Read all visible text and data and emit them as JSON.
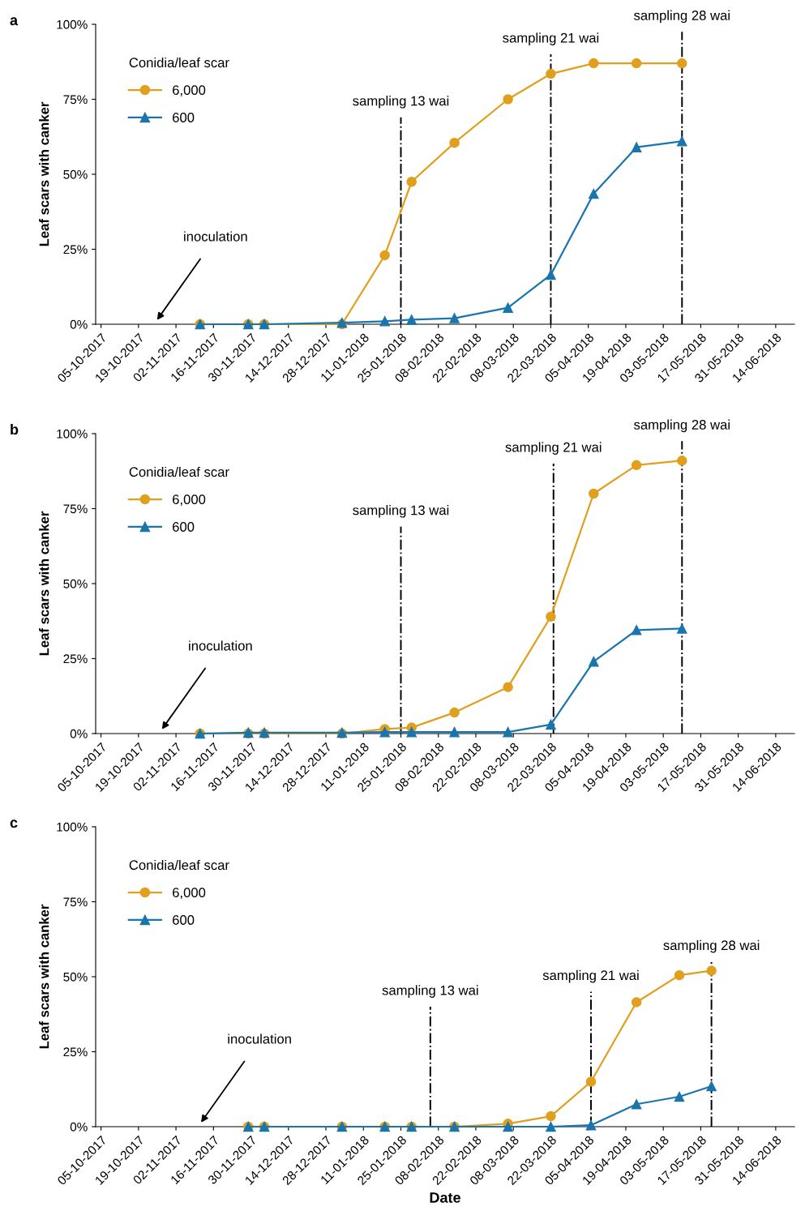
{
  "chart_data": [
    {
      "type": "line",
      "annotations": [
        "a",
        "inoculation"
      ],
      "ylabel": "Leaf scars with canker",
      "legend_title": "Conidia/leaf scar",
      "legend": "top left",
      "line_style": "solid",
      "x": [
        "2017-11-11",
        "2017-11-29",
        "2017-12-05",
        "2018-01-03",
        "2018-01-19",
        "2018-01-29",
        "2018-02-14",
        "2018-03-06",
        "2018-03-22",
        "2018-04-07",
        "2018-04-23",
        "2018-05-10"
      ],
      "series": [
        {
          "name": "6,000",
          "color": "#e0a01e",
          "marker": "circle",
          "values": [
            0,
            0,
            0,
            0,
            23,
            47.5,
            60.5,
            75,
            83.5,
            87,
            87,
            87
          ]
        },
        {
          "name": "600",
          "color": "#1b75ad",
          "marker": "triangle",
          "values": [
            0,
            0,
            0,
            0.5,
            1,
            1.5,
            2,
            5.5,
            16.5,
            43.5,
            59,
            61
          ]
        }
      ],
      "ref_lines": [
        {
          "axis": "x",
          "value": "2018-01-25",
          "label": "sampling 13 wai",
          "line_style": "dashdot"
        },
        {
          "axis": "x",
          "value": "2018-03-22",
          "label": "sampling 21 wai",
          "line_style": "dashdot"
        },
        {
          "axis": "x",
          "value": "2018-05-10",
          "label": "sampling 28 wai",
          "line_style": "dashdot"
        }
      ],
      "xlim": [
        "2017-10-03",
        "2018-06-21"
      ],
      "ylim": [
        0,
        100
      ],
      "xticks": [
        {
          "value": "2017-10-05",
          "label": "05-10-2017"
        },
        {
          "value": "2017-10-19",
          "label": "19-10-2017"
        },
        {
          "value": "2017-11-02",
          "label": "02-11-2017"
        },
        {
          "value": "2017-11-16",
          "label": "16-11-2017"
        },
        {
          "value": "2017-11-30",
          "label": "30-11-2017"
        },
        {
          "value": "2017-12-14",
          "label": "14-12-2017"
        },
        {
          "value": "2017-12-28",
          "label": "28-12-2017"
        },
        {
          "value": "2018-01-11",
          "label": "11-01-2018"
        },
        {
          "value": "2018-01-25",
          "label": "25-01-2018"
        },
        {
          "value": "2018-02-08",
          "label": "08-02-2018"
        },
        {
          "value": "2018-02-22",
          "label": "22-02-2018"
        },
        {
          "value": "2018-03-08",
          "label": "08-03-2018"
        },
        {
          "value": "2018-03-22",
          "label": "22-03-2018"
        },
        {
          "value": "2018-04-05",
          "label": "05-04-2018"
        },
        {
          "value": "2018-04-19",
          "label": "19-04-2018"
        },
        {
          "value": "2018-05-03",
          "label": "03-05-2018"
        },
        {
          "value": "2018-05-17",
          "label": "17-05-2018"
        },
        {
          "value": "2018-05-31",
          "label": "31-05-2018"
        },
        {
          "value": "2018-06-14",
          "label": "14-06-2018"
        }
      ],
      "yticks": [
        {
          "value": 0,
          "label": "0%"
        },
        {
          "value": 25,
          "label": "25%"
        },
        {
          "value": 50,
          "label": "50%"
        },
        {
          "value": 75,
          "label": "75%"
        },
        {
          "value": 100,
          "label": "100%"
        }
      ],
      "grid": false
    },
    {
      "type": "line",
      "annotations": [
        "b",
        "inoculation"
      ],
      "ylabel": "Leaf scars with canker",
      "legend_title": "Conidia/leaf scar",
      "legend": "top left",
      "line_style": "solid",
      "x": [
        "2017-11-11",
        "2017-11-29",
        "2017-12-05",
        "2018-01-03",
        "2018-01-19",
        "2018-01-29",
        "2018-02-14",
        "2018-03-06",
        "2018-03-22",
        "2018-04-07",
        "2018-04-23",
        "2018-05-10"
      ],
      "series": [
        {
          "name": "6,000",
          "color": "#e0a01e",
          "marker": "circle",
          "values": [
            0,
            0,
            0,
            0,
            1.5,
            2,
            7,
            15.5,
            39,
            80,
            89.5,
            91
          ]
        },
        {
          "name": "600",
          "color": "#1b75ad",
          "marker": "triangle",
          "values": [
            0,
            0.3,
            0.3,
            0.3,
            0.5,
            0.5,
            0.5,
            0.5,
            3,
            24,
            34.5,
            35
          ]
        }
      ],
      "ref_lines": [
        {
          "axis": "x",
          "value": "2018-01-25",
          "label": "sampling 13 wai",
          "line_style": "dashdot"
        },
        {
          "axis": "x",
          "value": "2018-03-23",
          "label": "sampling 21 wai",
          "line_style": "dashdot"
        },
        {
          "axis": "x",
          "value": "2018-05-10",
          "label": "sampling 28 wai",
          "line_style": "dashdot"
        }
      ],
      "xlim": [
        "2017-10-03",
        "2018-06-21"
      ],
      "ylim": [
        0,
        100
      ],
      "xticks": [
        {
          "value": "2017-10-05",
          "label": "05-10-2017"
        },
        {
          "value": "2017-10-19",
          "label": "19-10-2017"
        },
        {
          "value": "2017-11-02",
          "label": "02-11-2017"
        },
        {
          "value": "2017-11-16",
          "label": "16-11-2017"
        },
        {
          "value": "2017-11-30",
          "label": "30-11-2017"
        },
        {
          "value": "2017-12-14",
          "label": "14-12-2017"
        },
        {
          "value": "2017-12-28",
          "label": "28-12-2017"
        },
        {
          "value": "2018-01-11",
          "label": "11-01-2018"
        },
        {
          "value": "2018-01-25",
          "label": "25-01-2018"
        },
        {
          "value": "2018-02-08",
          "label": "08-02-2018"
        },
        {
          "value": "2018-02-22",
          "label": "22-02-2018"
        },
        {
          "value": "2018-03-08",
          "label": "08-03-2018"
        },
        {
          "value": "2018-03-22",
          "label": "22-03-2018"
        },
        {
          "value": "2018-04-05",
          "label": "05-04-2018"
        },
        {
          "value": "2018-04-19",
          "label": "19-04-2018"
        },
        {
          "value": "2018-05-03",
          "label": "03-05-2018"
        },
        {
          "value": "2018-05-17",
          "label": "17-05-2018"
        },
        {
          "value": "2018-05-31",
          "label": "31-05-2018"
        },
        {
          "value": "2018-06-14",
          "label": "14-06-2018"
        }
      ],
      "yticks": [
        {
          "value": 0,
          "label": "0%"
        },
        {
          "value": 25,
          "label": "25%"
        },
        {
          "value": 50,
          "label": "50%"
        },
        {
          "value": 75,
          "label": "75%"
        },
        {
          "value": 100,
          "label": "100%"
        }
      ],
      "grid": false
    },
    {
      "type": "line",
      "annotations": [
        "c",
        "inoculation"
      ],
      "xlabel": "Date",
      "ylabel": "Leaf scars with canker",
      "legend_title": "Conidia/leaf scar",
      "legend": "top left",
      "line_style": "solid",
      "x": [
        "2017-11-29",
        "2017-12-05",
        "2018-01-03",
        "2018-01-19",
        "2018-01-29",
        "2018-02-14",
        "2018-03-06",
        "2018-03-22",
        "2018-04-06",
        "2018-04-23",
        "2018-05-09",
        "2018-05-21"
      ],
      "series": [
        {
          "name": "6,000",
          "color": "#e0a01e",
          "marker": "circle",
          "values": [
            0,
            0,
            0,
            0,
            0,
            0,
            1,
            3.5,
            15,
            41.5,
            50.5,
            52
          ]
        },
        {
          "name": "600",
          "color": "#1b75ad",
          "marker": "triangle",
          "values": [
            0,
            0,
            0,
            0,
            0,
            0,
            0,
            0,
            0.5,
            7.5,
            10,
            13.5
          ]
        }
      ],
      "ref_lines": [
        {
          "axis": "x",
          "value": "2018-02-05",
          "label": "sampling 13 wai",
          "line_style": "dashdot"
        },
        {
          "axis": "x",
          "value": "2018-04-06",
          "label": "sampling 21 wai",
          "line_style": "dashdot"
        },
        {
          "axis": "x",
          "value": "2018-05-21",
          "label": "sampling 28 wai",
          "line_style": "dashdot"
        }
      ],
      "xlim": [
        "2017-10-03",
        "2018-06-21"
      ],
      "ylim": [
        0,
        100
      ],
      "xticks": [
        {
          "value": "2017-10-05",
          "label": "05-10-2017"
        },
        {
          "value": "2017-10-19",
          "label": "19-10-2017"
        },
        {
          "value": "2017-11-02",
          "label": "02-11-2017"
        },
        {
          "value": "2017-11-16",
          "label": "16-11-2017"
        },
        {
          "value": "2017-11-30",
          "label": "30-11-2017"
        },
        {
          "value": "2017-12-14",
          "label": "14-12-2017"
        },
        {
          "value": "2017-12-28",
          "label": "28-12-2017"
        },
        {
          "value": "2018-01-11",
          "label": "11-01-2018"
        },
        {
          "value": "2018-01-25",
          "label": "25-01-2018"
        },
        {
          "value": "2018-02-08",
          "label": "08-02-2018"
        },
        {
          "value": "2018-02-22",
          "label": "22-02-2018"
        },
        {
          "value": "2018-03-08",
          "label": "08-03-2018"
        },
        {
          "value": "2018-03-22",
          "label": "22-03-2018"
        },
        {
          "value": "2018-04-05",
          "label": "05-04-2018"
        },
        {
          "value": "2018-04-19",
          "label": "19-04-2018"
        },
        {
          "value": "2018-05-03",
          "label": "03-05-2018"
        },
        {
          "value": "2018-05-17",
          "label": "17-05-2018"
        },
        {
          "value": "2018-05-31",
          "label": "31-05-2018"
        },
        {
          "value": "2018-06-14",
          "label": "14-06-2018"
        }
      ],
      "yticks": [
        {
          "value": 0,
          "label": "0%"
        },
        {
          "value": 25,
          "label": "25%"
        },
        {
          "value": 50,
          "label": "50%"
        },
        {
          "value": 75,
          "label": "75%"
        },
        {
          "value": 100,
          "label": "100%"
        }
      ],
      "grid": false
    }
  ]
}
